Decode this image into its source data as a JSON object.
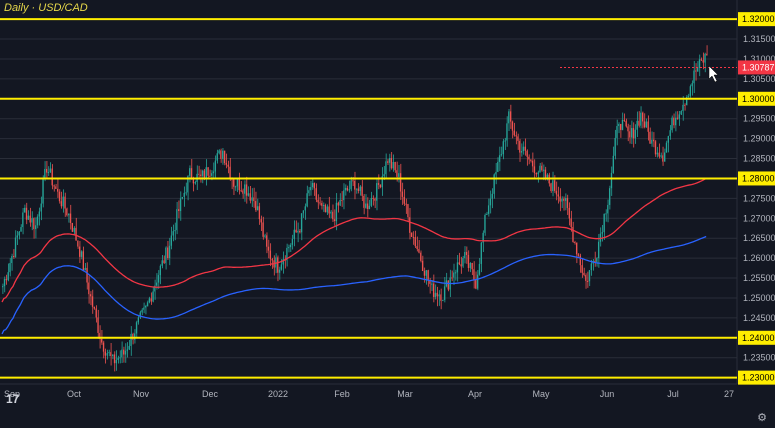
{
  "title": "Daily · USD/CAD",
  "tv_logo_text": "17",
  "settings_icon": "gear-icon",
  "colors": {
    "background": "#131722",
    "up": "#26a69a",
    "down": "#ef5350",
    "level_line": "#ffee00",
    "level_label_bg": "#ffee00",
    "current_label_bg": "#f23645",
    "ma_fast": "#f23645",
    "ma_slow": "#2962ff",
    "grid": "#2a2e39",
    "axis_text": "#b2b5be"
  },
  "chart_data": {
    "type": "candlestick",
    "symbol": "USD/CAD",
    "timeframe": "Daily",
    "ylim": [
      1.2284,
      1.3243
    ],
    "y_ticks": [
      "1.31500",
      "1.31000",
      "1.30500",
      "1.29500",
      "1.29000",
      "1.28500",
      "1.27500",
      "1.27000",
      "1.26500",
      "1.26000",
      "1.25500",
      "1.25000",
      "1.24500",
      "1.23500"
    ],
    "x_ticks": [
      "Sep",
      "Oct",
      "Nov",
      "Dec",
      "2022",
      "Feb",
      "Mar",
      "Apr",
      "May",
      "Jun",
      "Jul",
      "27"
    ],
    "horizontal_levels": [
      "1.32000",
      "1.30000",
      "1.28000",
      "1.24000",
      "1.23000"
    ],
    "current_price": "1.30787",
    "close_path": [
      [
        0,
        1.253
      ],
      [
        6,
        1.262
      ],
      [
        12,
        1.272
      ],
      [
        18,
        1.268
      ],
      [
        24,
        1.283
      ],
      [
        30,
        1.276
      ],
      [
        36,
        1.271
      ],
      [
        42,
        1.262
      ],
      [
        48,
        1.25
      ],
      [
        54,
        1.239
      ],
      [
        60,
        1.234
      ],
      [
        66,
        1.236
      ],
      [
        72,
        1.242
      ],
      [
        78,
        1.247
      ],
      [
        84,
        1.255
      ],
      [
        90,
        1.262
      ],
      [
        96,
        1.272
      ],
      [
        102,
        1.281
      ],
      [
        108,
        1.28
      ],
      [
        114,
        1.283
      ],
      [
        120,
        1.287
      ],
      [
        126,
        1.279
      ],
      [
        132,
        1.278
      ],
      [
        138,
        1.274
      ],
      [
        144,
        1.262
      ],
      [
        150,
        1.258
      ],
      [
        156,
        1.263
      ],
      [
        162,
        1.268
      ],
      [
        168,
        1.278
      ],
      [
        174,
        1.272
      ],
      [
        180,
        1.27
      ],
      [
        186,
        1.276
      ],
      [
        192,
        1.279
      ],
      [
        198,
        1.273
      ],
      [
        204,
        1.277
      ],
      [
        210,
        1.285
      ],
      [
        216,
        1.28
      ],
      [
        222,
        1.268
      ],
      [
        228,
        1.26
      ],
      [
        234,
        1.252
      ],
      [
        240,
        1.251
      ],
      [
        246,
        1.257
      ],
      [
        252,
        1.26
      ],
      [
        258,
        1.254
      ],
      [
        264,
        1.272
      ],
      [
        270,
        1.283
      ],
      [
        276,
        1.295
      ],
      [
        282,
        1.288
      ],
      [
        288,
        1.284
      ],
      [
        294,
        1.281
      ],
      [
        300,
        1.278
      ],
      [
        306,
        1.275
      ],
      [
        312,
        1.264
      ],
      [
        318,
        1.254
      ],
      [
        324,
        1.262
      ],
      [
        330,
        1.275
      ],
      [
        336,
        1.295
      ],
      [
        342,
        1.29
      ],
      [
        348,
        1.296
      ],
      [
        354,
        1.289
      ],
      [
        360,
        1.286
      ],
      [
        366,
        1.295
      ],
      [
        372,
        1.3
      ],
      [
        378,
        1.307
      ],
      [
        384,
        1.311
      ]
    ]
  }
}
